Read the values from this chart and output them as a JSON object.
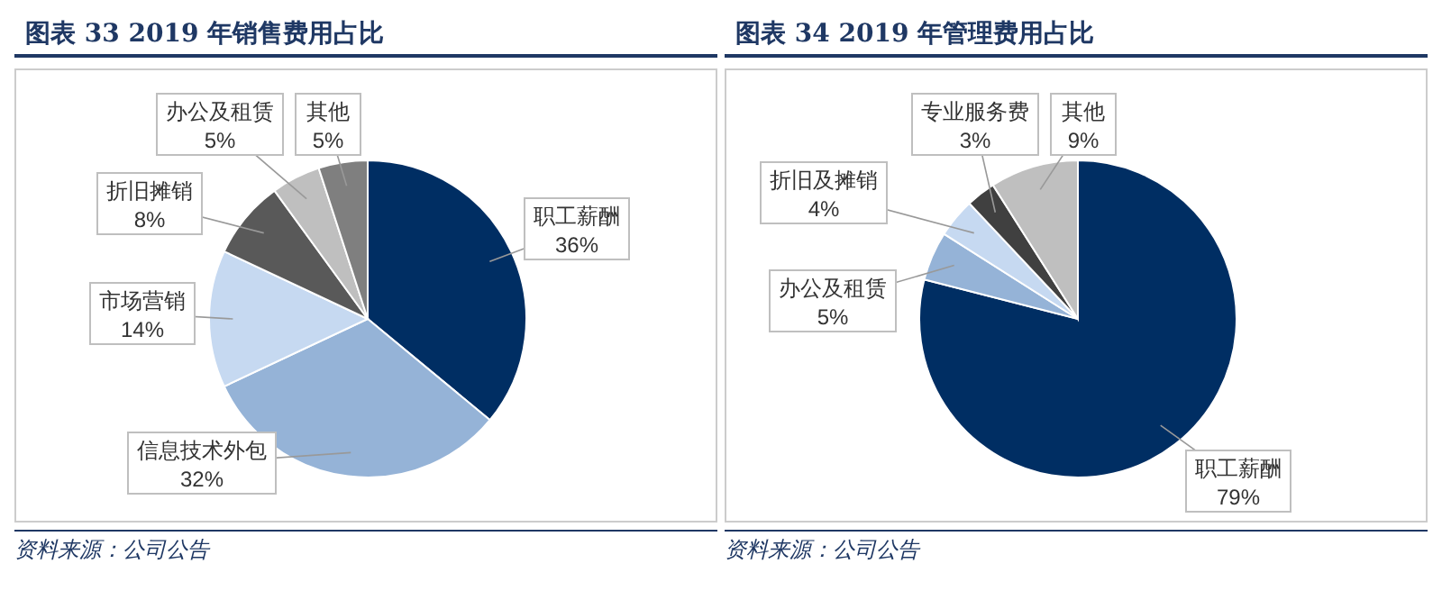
{
  "chart_data": [
    {
      "type": "pie",
      "title": "图表 33   2019 年销售费用占比",
      "categories": [
        "职工薪酬",
        "信息技术外包",
        "市场营销",
        "折旧摊销",
        "办公及租赁",
        "其他"
      ],
      "values": [
        36,
        32,
        14,
        8,
        5,
        5
      ],
      "value_labels": [
        "36%",
        "32%",
        "14%",
        "8%",
        "5%",
        "5%"
      ],
      "colors": [
        "#002e63",
        "#95b3d7",
        "#c6d9f1",
        "#595959",
        "#bfbfbf",
        "#7f7f7f"
      ],
      "annotations": [
        "资料来源：公司公告"
      ]
    },
    {
      "type": "pie",
      "title": "图表 34   2019 年管理费用占比",
      "categories": [
        "职工薪酬",
        "办公及租赁",
        "折旧及摊销",
        "专业服务费",
        "其他"
      ],
      "values": [
        79,
        5,
        4,
        3,
        9
      ],
      "value_labels": [
        "79%",
        "5%",
        "4%",
        "3%",
        "9%"
      ],
      "colors": [
        "#002e63",
        "#95b3d7",
        "#c6d9f1",
        "#404040",
        "#bfbfbf"
      ],
      "annotations": [
        "资料来源：公司公告"
      ]
    }
  ]
}
